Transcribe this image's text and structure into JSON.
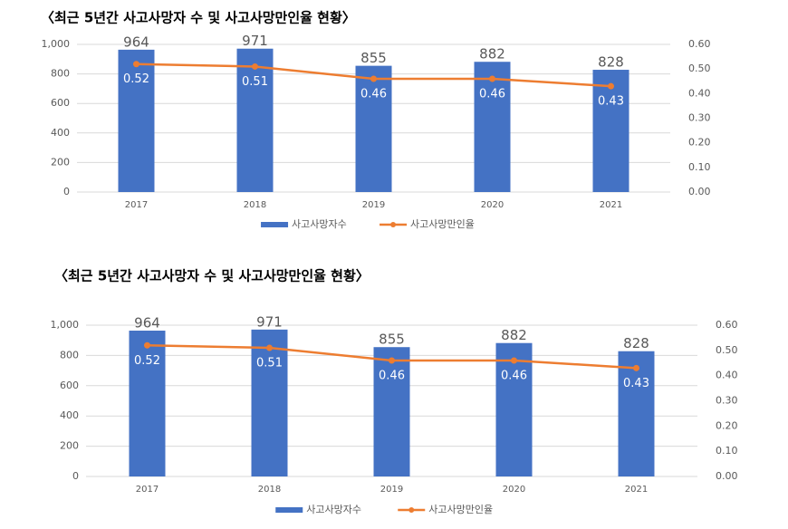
{
  "chart_data": [
    {
      "type": "bar-line",
      "title": "〈최근 5년간 사고사망자 수 및 사고사망만인율 현황〉",
      "categories": [
        "2017",
        "2018",
        "2019",
        "2020",
        "2021"
      ],
      "series": [
        {
          "name": "사고사망자수",
          "color": "#4472c4",
          "values": [
            964,
            971,
            855,
            882,
            828
          ]
        },
        {
          "name": "사고사망만인율",
          "color": "#ed7d31",
          "values": [
            0.52,
            0.51,
            0.46,
            0.46,
            0.43
          ],
          "axis": "y2"
        }
      ],
      "ylim": [
        0,
        1000
      ],
      "yticks": [
        0,
        200,
        400,
        600,
        800,
        {
          "value": 1000,
          "label": "1,000"
        }
      ],
      "y2lim": [
        0,
        0.6
      ],
      "y2ticks": [
        {
          "value": 0,
          "label": "0.00"
        },
        {
          "value": 0.1,
          "label": "0.10"
        },
        {
          "value": 0.2,
          "label": "0.20"
        },
        {
          "value": 0.3,
          "label": "0.30"
        },
        {
          "value": 0.4,
          "label": "0.40"
        },
        {
          "value": 0.5,
          "label": "0.50"
        },
        {
          "value": 0.6,
          "label": "0.60"
        }
      ],
      "grid": true,
      "legend": "bottom"
    },
    {
      "type": "bar-line",
      "title": "〈최근 5년간 사고사망자 수 및 사고사망만인율 현황〉",
      "categories": [
        "2017",
        "2018",
        "2019",
        "2020",
        "2021"
      ],
      "series": [
        {
          "name": "사고사망자수",
          "color": "#4472c4",
          "values": [
            964,
            971,
            855,
            882,
            828
          ]
        },
        {
          "name": "사고사망만인율",
          "color": "#ed7d31",
          "values": [
            0.52,
            0.51,
            0.46,
            0.46,
            0.43
          ],
          "axis": "y2"
        }
      ],
      "ylim": [
        0,
        1000
      ],
      "yticks": [
        0,
        200,
        400,
        600,
        800,
        {
          "value": 1000,
          "label": "1,000"
        }
      ],
      "y2lim": [
        0,
        0.6
      ],
      "y2ticks": [
        {
          "value": 0,
          "label": "0.00"
        },
        {
          "value": 0.1,
          "label": "0.10"
        },
        {
          "value": 0.2,
          "label": "0.20"
        },
        {
          "value": 0.3,
          "label": "0.30"
        },
        {
          "value": 0.4,
          "label": "0.40"
        },
        {
          "value": 0.5,
          "label": "0.50"
        },
        {
          "value": 0.6,
          "label": "0.60"
        }
      ],
      "grid": true,
      "legend": "bottom"
    }
  ]
}
